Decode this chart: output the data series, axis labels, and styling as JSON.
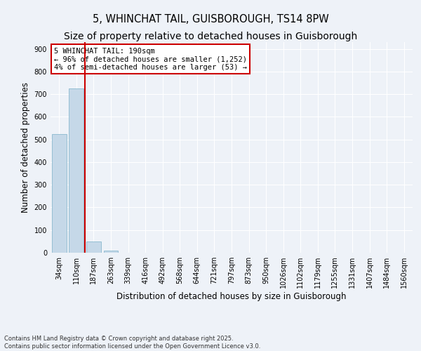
{
  "title": "5, WHINCHAT TAIL, GUISBOROUGH, TS14 8PW",
  "subtitle": "Size of property relative to detached houses in Guisborough",
  "xlabel": "Distribution of detached houses by size in Guisborough",
  "ylabel": "Number of detached properties",
  "categories": [
    "34sqm",
    "110sqm",
    "187sqm",
    "263sqm",
    "339sqm",
    "416sqm",
    "492sqm",
    "568sqm",
    "644sqm",
    "721sqm",
    "797sqm",
    "873sqm",
    "950sqm",
    "1026sqm",
    "1102sqm",
    "1179sqm",
    "1255sqm",
    "1331sqm",
    "1407sqm",
    "1484sqm",
    "1560sqm"
  ],
  "values": [
    525,
    725,
    50,
    8,
    1,
    0,
    0,
    0,
    0,
    0,
    0,
    0,
    0,
    0,
    0,
    0,
    0,
    0,
    0,
    0,
    0
  ],
  "bar_color": "#c5d8e8",
  "bar_edge_color": "#7aafc8",
  "background_color": "#eef2f8",
  "grid_color": "#ffffff",
  "annotation_box_color": "#cc0000",
  "property_line_color": "#cc0000",
  "annotation_title": "5 WHINCHAT TAIL: 190sqm",
  "annotation_line1": "← 96% of detached houses are smaller (1,252)",
  "annotation_line2": "4% of semi-detached houses are larger (53) →",
  "ylim": [
    0,
    930
  ],
  "yticks": [
    0,
    100,
    200,
    300,
    400,
    500,
    600,
    700,
    800,
    900
  ],
  "footer_line1": "Contains HM Land Registry data © Crown copyright and database right 2025.",
  "footer_line2": "Contains public sector information licensed under the Open Government Licence v3.0.",
  "title_fontsize": 10.5,
  "tick_fontsize": 7,
  "ylabel_fontsize": 8.5,
  "xlabel_fontsize": 8.5,
  "annotation_fontsize": 7.5
}
